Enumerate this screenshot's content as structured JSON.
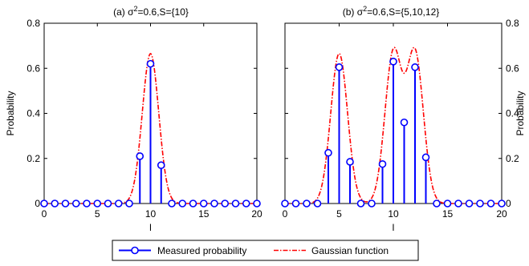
{
  "chart_data": [
    {
      "type": "stem",
      "title_prefix": "(a) σ",
      "title_sup": "2",
      "title_suffix": "=0.6,S={10}",
      "xlabel": "l",
      "ylabel": "Probability",
      "ylabel_side": "left",
      "xlim": [
        0,
        20
      ],
      "ylim": [
        0,
        0.8
      ],
      "xticks": [
        "0",
        "5",
        "10",
        "15",
        "20"
      ],
      "yticks": [
        "0",
        "0.2",
        "0.4",
        "0.6",
        "0.8"
      ],
      "series": [
        {
          "name": "Measured probability",
          "kind": "stem",
          "x": [
            0,
            1,
            2,
            3,
            4,
            5,
            6,
            7,
            8,
            9,
            10,
            11,
            12,
            13,
            14,
            15,
            16,
            17,
            18,
            19,
            20
          ],
          "values": [
            0,
            0,
            0,
            0,
            0,
            0,
            0,
            0,
            0,
            0.21,
            0.62,
            0.17,
            0,
            0,
            0,
            0,
            0,
            0,
            0,
            0,
            0
          ]
        },
        {
          "name": "Gaussian function",
          "kind": "line",
          "centers": [
            10
          ],
          "amplitude": 0.665,
          "sigma2": 0.6
        }
      ]
    },
    {
      "type": "stem",
      "title_prefix": "(b) σ",
      "title_sup": "2",
      "title_suffix": "=0.6,S={5,10,12}",
      "xlabel": "l",
      "ylabel": "Probability",
      "ylabel_side": "right",
      "xlim": [
        0,
        20
      ],
      "ylim": [
        0,
        0.8
      ],
      "xticks": [
        "0",
        "5",
        "10",
        "15",
        "20"
      ],
      "yticks": [
        "0",
        "0.2",
        "0.4",
        "0.6",
        "0.8"
      ],
      "series": [
        {
          "name": "Measured probability",
          "kind": "stem",
          "x": [
            0,
            1,
            2,
            3,
            4,
            5,
            6,
            7,
            8,
            9,
            10,
            11,
            12,
            13,
            14,
            15,
            16,
            17,
            18,
            19,
            20
          ],
          "values": [
            0,
            0,
            0,
            0,
            0.225,
            0.605,
            0.185,
            0,
            0,
            0.175,
            0.63,
            0.36,
            0.605,
            0.205,
            0,
            0,
            0,
            0,
            0,
            0,
            0
          ]
        },
        {
          "name": "Gaussian function",
          "kind": "line",
          "centers": [
            5,
            10,
            12
          ],
          "amplitude": 0.665,
          "sigma2": 0.6
        }
      ]
    }
  ],
  "legend": {
    "placement": "bottom-center",
    "items": [
      {
        "label": "Measured probability",
        "style": "stem"
      },
      {
        "label": "Gaussian function",
        "style": "dashdot"
      }
    ]
  },
  "colors": {
    "stem": "#0000ff",
    "gaussian": "#ff0000",
    "axes": "#000000"
  }
}
